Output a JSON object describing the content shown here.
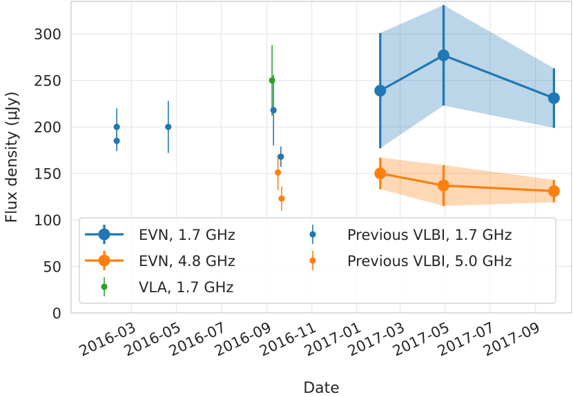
{
  "chart_data": {
    "type": "scatter",
    "xlabel": "Date",
    "ylabel": "Flux density (μJy)",
    "ylim": [
      0,
      335
    ],
    "xlim": [
      "2015-12-10",
      "2017-10-20"
    ],
    "grid": true,
    "x_ticks": [
      "2016-03",
      "2016-05",
      "2016-07",
      "2016-09",
      "2016-11",
      "2017-01",
      "2017-03",
      "2017-05",
      "2017-07",
      "2017-09"
    ],
    "y_ticks": [
      0,
      50,
      100,
      150,
      200,
      250,
      300
    ],
    "colors": {
      "blue": "#1f77b4",
      "orange": "#ff7f0e",
      "green": "#2ca02c"
    },
    "legend_position": "lower-center",
    "series": [
      {
        "name": "EVN, 1.7 GHz",
        "style": "line-band",
        "color": "#1f77b4",
        "points": [
          {
            "date": "2017-02-02",
            "y": 239,
            "err": 62
          },
          {
            "date": "2017-04-29",
            "y": 277,
            "err": 54
          },
          {
            "date": "2017-09-26",
            "y": 231,
            "err": 32
          }
        ]
      },
      {
        "name": "EVN, 4.8 GHz",
        "style": "line-band",
        "color": "#ff7f0e",
        "points": [
          {
            "date": "2017-02-02",
            "y": 150,
            "err": 17
          },
          {
            "date": "2017-04-29",
            "y": 137,
            "err": 22
          },
          {
            "date": "2017-09-26",
            "y": 131,
            "err": 12
          }
        ]
      },
      {
        "name": "VLA, 1.7 GHz",
        "style": "errorbar",
        "color": "#2ca02c",
        "points": [
          {
            "date": "2016-09-08",
            "y": 250,
            "err": 38
          }
        ]
      },
      {
        "name": "Previous VLBI, 1.7 GHz",
        "style": "errorbar",
        "color": "#1f77b4",
        "points": [
          {
            "date": "2016-02-10",
            "y": 185,
            "err": 11
          },
          {
            "date": "2016-02-10",
            "y": 200,
            "err": 20
          },
          {
            "date": "2016-04-20",
            "y": 200,
            "err": 28
          },
          {
            "date": "2016-09-10",
            "y": 218,
            "err": 38
          },
          {
            "date": "2016-09-20",
            "y": 168,
            "err": 11
          }
        ]
      },
      {
        "name": "Previous VLBI, 5.0 GHz",
        "style": "errorbar",
        "color": "#ff7f0e",
        "points": [
          {
            "date": "2016-09-16",
            "y": 151,
            "err": 19
          },
          {
            "date": "2016-09-21",
            "y": 123,
            "err": 13
          }
        ]
      }
    ]
  }
}
